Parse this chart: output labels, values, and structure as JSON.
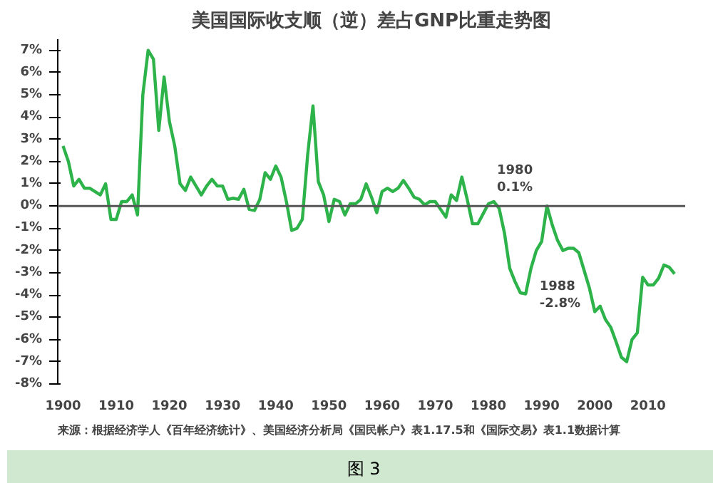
{
  "chart_data": {
    "type": "line",
    "title": "美国国际收支顺（逆）差占GNP比重走势图",
    "x": [
      1900,
      1901,
      1902,
      1903,
      1904,
      1905,
      1906,
      1907,
      1908,
      1909,
      1910,
      1911,
      1912,
      1913,
      1914,
      1915,
      1916,
      1917,
      1918,
      1919,
      1920,
      1921,
      1922,
      1923,
      1924,
      1925,
      1926,
      1927,
      1928,
      1929,
      1930,
      1931,
      1932,
      1933,
      1934,
      1935,
      1936,
      1937,
      1938,
      1939,
      1940,
      1941,
      1942,
      1943,
      1944,
      1945,
      1946,
      1947,
      1948,
      1949,
      1950,
      1951,
      1952,
      1953,
      1954,
      1955,
      1956,
      1957,
      1958,
      1959,
      1960,
      1961,
      1962,
      1963,
      1964,
      1965,
      1966,
      1967,
      1968,
      1969,
      1970,
      1971,
      1972,
      1973,
      1974,
      1975,
      1976,
      1977,
      1978,
      1979,
      1980,
      1981,
      1982,
      1983,
      1984,
      1985,
      1986,
      1987,
      1988,
      1989,
      1990,
      1991,
      1992,
      1993,
      1994,
      1995,
      1996,
      1997,
      1998,
      1999,
      2000,
      2001,
      2002,
      2003,
      2004,
      2005,
      2006,
      2007,
      2008,
      2009,
      2010,
      2011,
      2012,
      2013,
      2014,
      2015
    ],
    "series": [
      {
        "color": "#2db34a",
        "values": [
          2.7,
          2.0,
          0.9,
          1.2,
          0.8,
          0.8,
          0.65,
          0.5,
          1.0,
          -0.6,
          -0.6,
          0.2,
          0.2,
          0.5,
          -0.4,
          5.0,
          7.0,
          6.6,
          3.4,
          5.8,
          3.8,
          2.7,
          1.0,
          0.7,
          1.3,
          0.9,
          0.5,
          0.9,
          1.2,
          0.9,
          0.9,
          0.3,
          0.35,
          0.3,
          0.75,
          -0.15,
          -0.2,
          0.3,
          1.5,
          1.2,
          1.8,
          1.3,
          0.2,
          -1.1,
          -1.0,
          -0.6,
          2.3,
          4.5,
          1.1,
          0.5,
          -0.7,
          0.3,
          0.2,
          -0.4,
          0.1,
          0.1,
          0.3,
          1.0,
          0.4,
          -0.3,
          0.65,
          0.8,
          0.65,
          0.8,
          1.15,
          0.8,
          0.4,
          0.3,
          0.05,
          0.2,
          0.2,
          -0.15,
          -0.5,
          0.5,
          0.25,
          1.3,
          0.3,
          -0.8,
          -0.8,
          -0.35,
          0.1,
          0.2,
          -0.1,
          -1.2,
          -2.8,
          -3.4,
          -3.9,
          -3.95,
          -2.8,
          -2.0,
          -1.6,
          0.0,
          -0.85,
          -1.55,
          -2.0,
          -1.9,
          -1.9,
          -2.1,
          -2.9,
          -3.7,
          -4.75,
          -4.5,
          -5.1,
          -5.45,
          -6.1,
          -6.8,
          -7.0,
          -6.0,
          -5.7,
          -3.2,
          -3.55,
          -3.55,
          -3.25,
          -2.65,
          -2.75,
          -3.05
        ]
      }
    ],
    "xlim": [
      1899,
      2017
    ],
    "xticks": [
      1900,
      1910,
      1920,
      1930,
      1940,
      1950,
      1960,
      1970,
      1980,
      1990,
      2000,
      2010
    ],
    "ylim": [
      -8,
      7.5
    ],
    "yticks": [
      {
        "value": -8,
        "label": "-8%"
      },
      {
        "value": -7,
        "label": "-7%"
      },
      {
        "value": -6,
        "label": "-6%"
      },
      {
        "value": -5,
        "label": "-5%"
      },
      {
        "value": -4,
        "label": "-4%"
      },
      {
        "value": -3,
        "label": "-3%"
      },
      {
        "value": -2,
        "label": "-2%"
      },
      {
        "value": -1,
        "label": "-1%"
      },
      {
        "value": 0,
        "label": "0%"
      },
      {
        "value": 1,
        "label": "1%"
      },
      {
        "value": 2,
        "label": "2%"
      },
      {
        "value": 3,
        "label": "3%"
      },
      {
        "value": 4,
        "label": "4%"
      },
      {
        "value": 5,
        "label": "5%"
      },
      {
        "value": 6,
        "label": "6%"
      },
      {
        "value": 7,
        "label": "7%"
      }
    ],
    "ref_lines": [
      {
        "axis": "y",
        "value": 0,
        "color": "#555555"
      }
    ],
    "annotations": [
      {
        "text": "1980\n0.1%",
        "x": 1980,
        "y": 0.1
      },
      {
        "text": "1988\n-2.8%",
        "x": 1988,
        "y": -2.8
      },
      "来源：根据经济学人《百年经济统计》、美国经济分析局《国民帐户》表1.17.5和《国际交易》表1.1数据计算",
      "图 3"
    ],
    "grid": false,
    "marker": "none",
    "line_style": "solid"
  }
}
